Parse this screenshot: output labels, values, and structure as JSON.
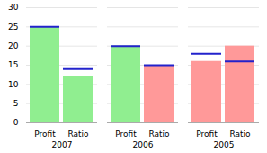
{
  "chart_data": {
    "type": "bar",
    "groups": [
      "2007",
      "2006",
      "2005"
    ],
    "categories": [
      "Profit",
      "Ratio"
    ],
    "values": [
      [
        25,
        12
      ],
      [
        20,
        15
      ],
      [
        16,
        20
      ]
    ],
    "colors": [
      [
        "#90EE90",
        "#90EE90"
      ],
      [
        "#90EE90",
        "#FF9999"
      ],
      [
        "#FF9999",
        "#FF9999"
      ]
    ],
    "targets": {
      "values": [
        [
          25,
          14
        ],
        [
          20,
          15
        ],
        [
          18,
          16
        ]
      ],
      "color": "#2222CC"
    },
    "ylim": [
      0,
      30
    ],
    "yticks": [
      0,
      5,
      10,
      15,
      20,
      25,
      30
    ],
    "grid": true
  }
}
